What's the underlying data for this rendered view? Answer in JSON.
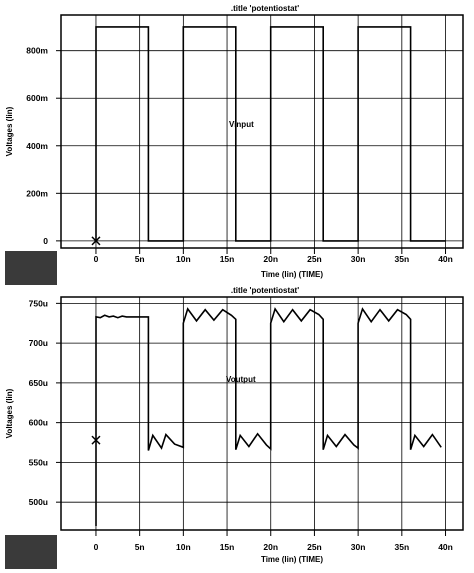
{
  "chart_data": [
    {
      "type": "line",
      "title": ".title 'potentiostat'",
      "xlabel": "Time (lin) (TIME)",
      "ylabel": "Voltages (lin)",
      "annotation": "Vinput",
      "x_ticks": [
        0,
        5,
        10,
        15,
        20,
        25,
        30,
        35,
        40
      ],
      "x_tick_labels": [
        "0",
        "5n",
        "10n",
        "15n",
        "20n",
        "25n",
        "30n",
        "35n",
        "40n"
      ],
      "xlim": [
        -4,
        42
      ],
      "y_ticks": [
        0,
        0.2,
        0.4,
        0.6,
        0.8
      ],
      "y_tick_labels": [
        "0",
        "200m",
        "400m",
        "600m",
        "800m"
      ],
      "ylim": [
        -0.03,
        0.95
      ],
      "x_units": "ns",
      "y_units": "V",
      "grid": true,
      "marker": {
        "x": 0,
        "y": 0,
        "symbol": "x"
      },
      "series": [
        {
          "x": [
            0,
            0,
            6,
            6,
            10,
            10,
            16,
            16,
            20,
            20,
            26,
            26,
            30,
            30,
            36,
            36,
            40
          ],
          "y": [
            0,
            0.9,
            0.9,
            0,
            0,
            0.9,
            0.9,
            0,
            0,
            0.9,
            0.9,
            0,
            0,
            0.9,
            0.9,
            0,
            0
          ]
        }
      ]
    },
    {
      "type": "line",
      "title": ".title 'potentiostat'",
      "xlabel": "Time (lin) (TIME)",
      "ylabel": "Voltages (lin)",
      "annotation": "Voutput",
      "x_ticks": [
        0,
        5,
        10,
        15,
        20,
        25,
        30,
        35,
        40
      ],
      "x_tick_labels": [
        "0",
        "5n",
        "10n",
        "15n",
        "20n",
        "25n",
        "30n",
        "35n",
        "40n"
      ],
      "xlim": [
        -4,
        42
      ],
      "y_ticks": [
        500,
        550,
        600,
        650,
        700,
        750
      ],
      "y_tick_labels": [
        "500u",
        "550u",
        "600u",
        "650u",
        "700u",
        "750u"
      ],
      "ylim": [
        465,
        758
      ],
      "x_units": "ns",
      "y_units": "uV",
      "grid": true,
      "marker": {
        "x": 0,
        "y": 578,
        "symbol": "x"
      },
      "series": [
        {
          "x": [
            0,
            0,
            0.5,
            1,
            1.5,
            2,
            2.5,
            3,
            3.5,
            4,
            4.5,
            5.5,
            6,
            6,
            6.5,
            7.5,
            8,
            9,
            10,
            10,
            10.5,
            11.5,
            12.5,
            13.5,
            14.5,
            15.5,
            16,
            16,
            16.5,
            17.5,
            18.5,
            19.5,
            20,
            20,
            20.5,
            21.5,
            22.5,
            23.5,
            24.5,
            25.5,
            26,
            26,
            26.5,
            27.5,
            28.5,
            29.5,
            30,
            30,
            30.5,
            31.5,
            32.5,
            33.5,
            34.5,
            35.5,
            36,
            36,
            36.5,
            37.5,
            38.5,
            39.5
          ],
          "y": [
            470,
            733,
            732,
            735,
            733,
            734,
            732,
            734,
            733,
            733,
            733,
            733,
            733,
            565,
            584,
            568,
            585,
            573,
            569,
            725,
            743,
            728,
            742,
            729,
            742,
            735,
            730,
            566,
            584,
            570,
            586,
            572,
            567,
            725,
            743,
            727,
            742,
            728,
            742,
            736,
            730,
            566,
            584,
            570,
            585,
            572,
            568,
            725,
            743,
            727,
            742,
            728,
            742,
            736,
            730,
            566,
            584,
            570,
            585,
            569
          ]
        }
      ]
    }
  ]
}
